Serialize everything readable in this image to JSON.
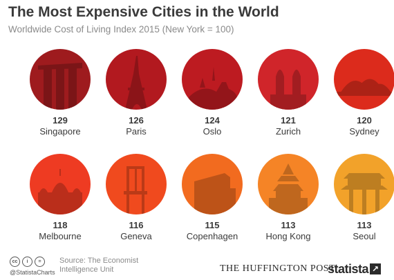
{
  "header": {
    "title": "The Most Expensive Cities in the World",
    "subtitle": "Worldwide Cost of Living Index 2015 (New York = 100)"
  },
  "chart_data": {
    "type": "table",
    "title": "The Most Expensive Cities in the World",
    "subtitle": "Worldwide Cost of Living Index 2015 (New York = 100)",
    "categories": [
      "Singapore",
      "Paris",
      "Oslo",
      "Zurich",
      "Sydney",
      "Melbourne",
      "Geneva",
      "Copenhagen",
      "Hong Kong",
      "Seoul"
    ],
    "values": [
      129,
      126,
      124,
      121,
      120,
      118,
      116,
      115,
      113,
      113
    ],
    "colors": [
      "#9e1b1e",
      "#b2191f",
      "#bd1b21",
      "#d0252a",
      "#dc2b1c",
      "#ee3b22",
      "#f04a1e",
      "#f26b1f",
      "#f58426",
      "#f2a22a"
    ],
    "icons": [
      "marina-bay-sands-icon",
      "eiffel-tower-icon",
      "oslo-opera-icon",
      "grossmunster-icon",
      "sydney-opera-house-icon",
      "melbourne-building-icon",
      "geneva-chair-icon",
      "copenhagen-building-icon",
      "temple-of-heaven-icon",
      "korean-gate-icon"
    ]
  },
  "footer": {
    "cc_icons": [
      "cc",
      "i",
      "="
    ],
    "handle": "@StatistaCharts",
    "source_line1": "Source: The Economist",
    "source_line2": "Intelligence Unit",
    "partner": "THE HUFFINGTON POST",
    "brand": "statista"
  }
}
